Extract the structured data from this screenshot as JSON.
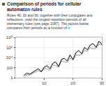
{
  "chart_data": {
    "type": "line",
    "title": "Comparison of periods for cellular automaton rules",
    "subtitle": "Rules 45, 30 and 60, together with their conjugates and reflections, yield the longest repetition periods of all elementary rules (see page 1087). The picture below compares their periods as a function of n.",
    "x": [
      3,
      4,
      5,
      6,
      7,
      8,
      9,
      10,
      11,
      12,
      13,
      14,
      15,
      16,
      17,
      18,
      19,
      20,
      21,
      22,
      23,
      24,
      25,
      26,
      27,
      28,
      29,
      30
    ],
    "series": [
      {
        "color": "#999999",
        "values": [
          1,
          4,
          3,
          8,
          12,
          24,
          14,
          62,
          62,
          30,
          340,
          252,
          126,
          2046,
          1422,
          1022,
          8190,
          3066,
          32766,
          26214,
          42000,
          262142,
          174762,
          1048574,
          524286,
          699050,
          4194302,
          3145726
        ]
      },
      {
        "color": "#000000",
        "values": [
          3,
          8,
          5,
          12,
          28,
          63,
          15,
          120,
          255,
          60,
          710,
          1365,
          168,
          4095,
          7161,
          2040,
          32767,
          4095,
          91245,
          262143,
          58280,
          1048575,
          349525,
          3145725,
          6029055,
          1048576,
          16777215,
          4194303
        ]
      }
    ],
    "log": "y",
    "xlim": [
      0,
      30
    ],
    "xticks": [
      10,
      20,
      30
    ],
    "ylim": [
      1,
      100000000
    ],
    "yticks": [
      1,
      {
        "value": 100,
        "label": "10²"
      },
      {
        "value": 10000,
        "label": "10⁴"
      },
      {
        "value": 1000000,
        "label": "10⁶"
      },
      {
        "value": 100000000,
        "label": "10⁸"
      }
    ],
    "grid": true
  }
}
